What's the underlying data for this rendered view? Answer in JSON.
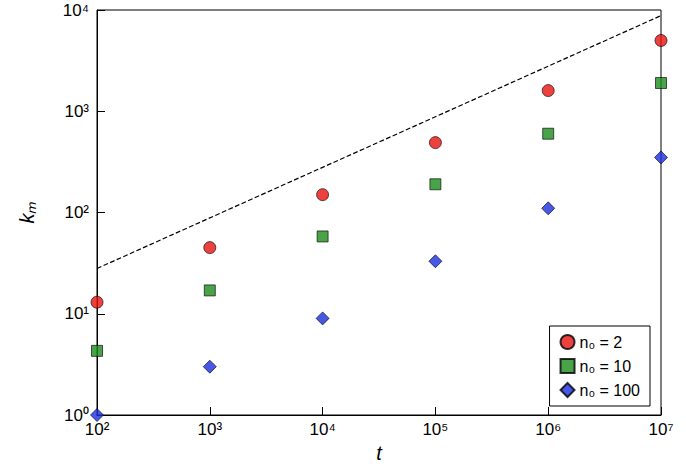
{
  "chart_data": {
    "type": "scatter",
    "log": true,
    "grid": false,
    "legend": "bottom-right",
    "x_label": "t",
    "y_label": "kₘ",
    "xlim": [
      100,
      10000000
    ],
    "ylim": [
      1,
      10000
    ],
    "xticks": [
      {
        "value": 100,
        "label": "10²"
      },
      {
        "value": 1000,
        "label": "10³"
      },
      {
        "value": 10000,
        "label": "10⁴"
      },
      {
        "value": 100000,
        "label": "10⁵"
      },
      {
        "value": 1000000,
        "label": "10⁶"
      },
      {
        "value": 10000000,
        "label": "10⁷"
      }
    ],
    "yticks": [
      {
        "value": 1,
        "label": "10⁰"
      },
      {
        "value": 10,
        "label": "10¹"
      },
      {
        "value": 100,
        "label": "10²"
      },
      {
        "value": 1000,
        "label": "10³"
      },
      {
        "value": 10000,
        "label": "10⁴"
      }
    ],
    "x": [
      100,
      1000,
      10000,
      100000,
      1000000,
      10000000
    ],
    "series": [
      {
        "name": "n₀ = 2",
        "color": "#e8120c",
        "marker": "circle",
        "values": [
          13,
          45,
          150,
          490,
          1600,
          5000
        ]
      },
      {
        "name": "n₀ = 10",
        "color": "#1c8c1c",
        "marker": "square",
        "values": [
          4.3,
          17,
          58,
          190,
          600,
          1900
        ]
      },
      {
        "name": "n₀ = 100",
        "color": "#1a2ee0",
        "marker": "diamond",
        "values": [
          1.0,
          3.0,
          9,
          33,
          110,
          350
        ]
      },
      {
        "type": "line",
        "line_style": "dashed",
        "color": "#000000",
        "x": [
          100,
          10000000
        ],
        "values": [
          28,
          8800
        ]
      }
    ]
  }
}
